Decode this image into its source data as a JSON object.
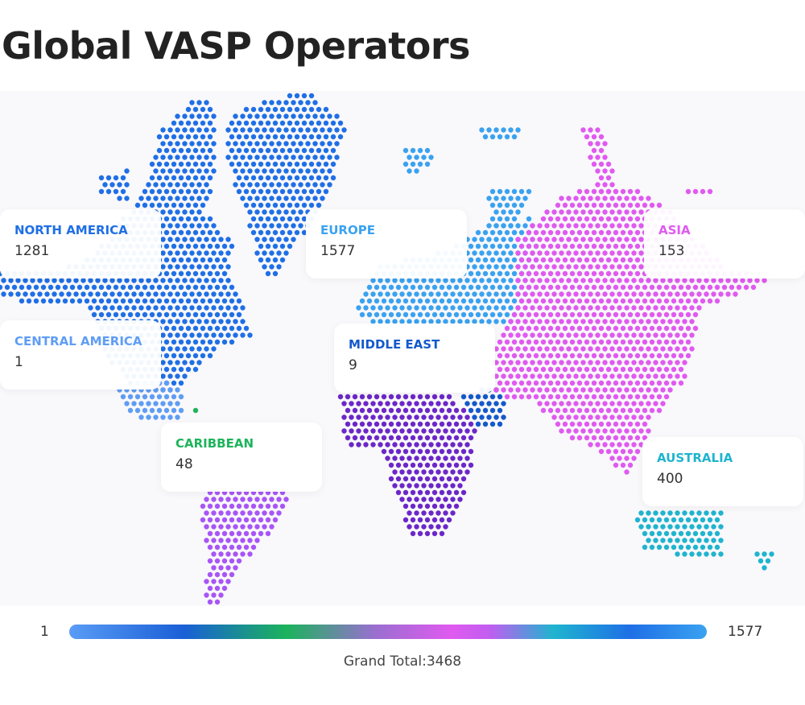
{
  "title": "Global VASP Operators",
  "regions": [
    {
      "name": "NORTH AMERICA",
      "value": 1281,
      "color": "#1f6fe6"
    },
    {
      "name": "CENTRAL AMERICA",
      "value": 1,
      "color": "#5f9df4"
    },
    {
      "name": "CARIBBEAN",
      "value": 48,
      "color": "#1db45a"
    },
    {
      "name": "EUROPE",
      "value": 1577,
      "color": "#3aa2f0"
    },
    {
      "name": "MIDDLE EAST",
      "value": 9,
      "color": "#1459cc"
    },
    {
      "name": "ASIA",
      "value": 153,
      "color": "#e05af0"
    },
    {
      "name": "AUSTRALIA",
      "value": 400,
      "color": "#1fb4cf"
    }
  ],
  "legend": {
    "min": 1,
    "max": 1577,
    "total_label": "Grand Total:",
    "total": 3468
  }
}
